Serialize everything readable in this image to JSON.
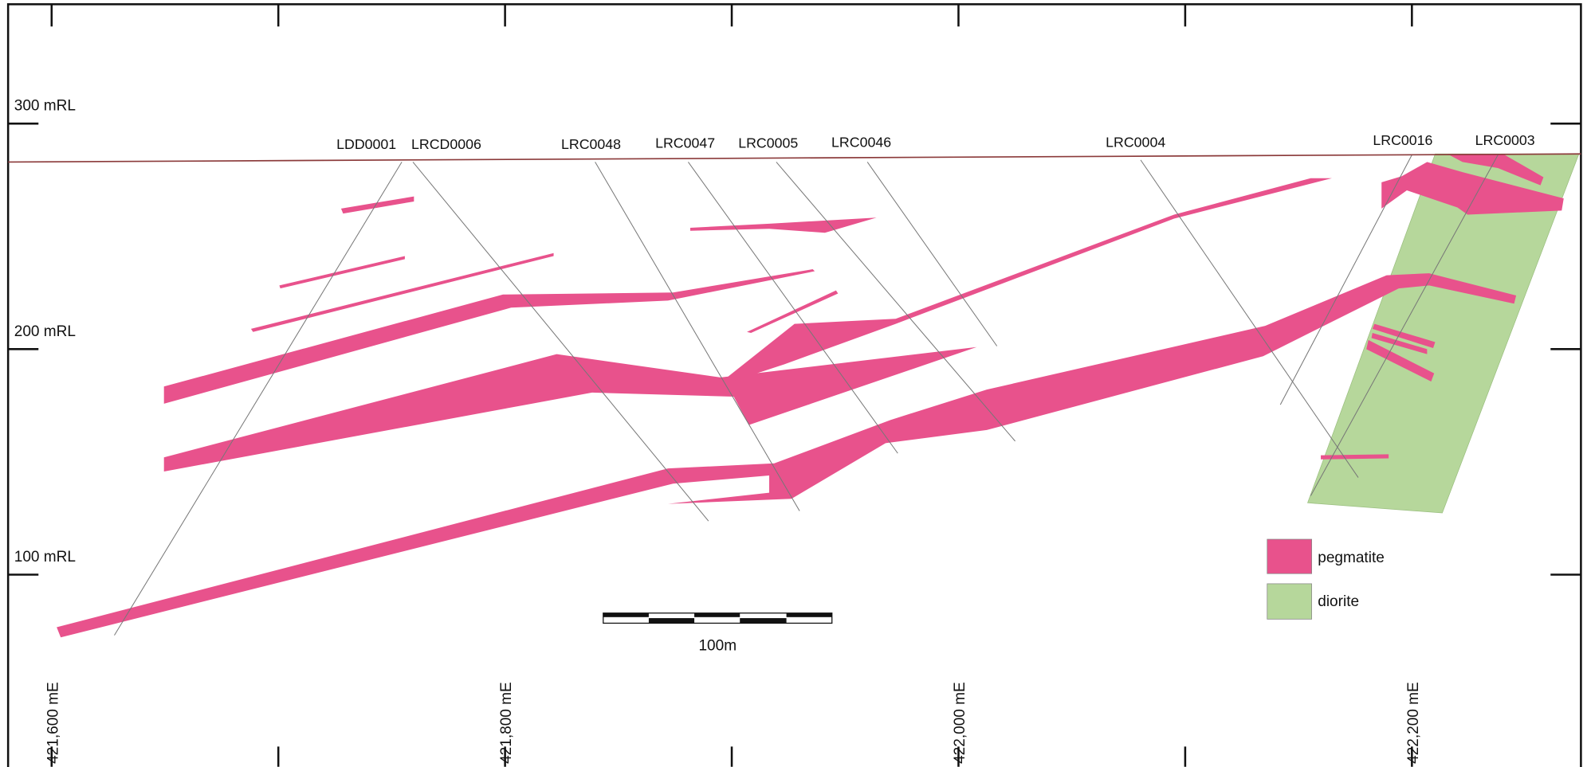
{
  "section": {
    "rl_labels": [
      "300 mRL",
      "200 mRL",
      "100 mRL"
    ],
    "easting_labels": [
      "421,600 mE",
      "421,800 mE",
      "422,000 mE",
      "422,200 mE"
    ],
    "drillholes": [
      "LDD0001",
      "LRCD0006",
      "LRC0048",
      "LRC0047",
      "LRC0005",
      "LRC0046",
      "LRC0004",
      "LRC0016",
      "LRC0003"
    ],
    "legend": [
      {
        "label": "pegmatite",
        "color": "#e8528c"
      },
      {
        "label": "diorite",
        "color": "#b6d79b"
      }
    ],
    "scale_bar": "100m"
  }
}
